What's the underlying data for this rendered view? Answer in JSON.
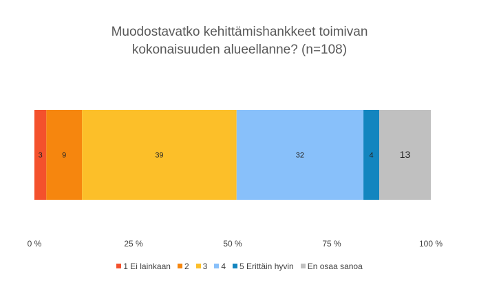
{
  "chart_data": {
    "type": "bar",
    "orientation": "horizontal",
    "stacked": "percent",
    "title": {
      "line1": "Muodostavatko kehittämishankkeet toimivan",
      "line2": "kokonaisuuden alueellanne? (n=108)"
    },
    "categories": [
      ""
    ],
    "series": [
      {
        "name": "1 Ei lainkaan",
        "values": [
          3
        ],
        "label": "3",
        "color": "#f4512c"
      },
      {
        "name": "2",
        "values": [
          9
        ],
        "label": "9",
        "color": "#f6860e"
      },
      {
        "name": "3",
        "values": [
          39
        ],
        "label": "39",
        "color": "#fcbf29"
      },
      {
        "name": "4",
        "values": [
          32
        ],
        "label": "32",
        "color": "#88c0fa"
      },
      {
        "name": "5 Erittäin hyvin",
        "values": [
          4
        ],
        "label": "4",
        "color": "#1385bf"
      },
      {
        "name": "En osaa sanoa",
        "values": [
          13
        ],
        "label": "13",
        "color": "#c0c0c0"
      }
    ],
    "xlim": [
      0,
      100
    ],
    "x_ticks": [
      "0 %",
      "25 %",
      "50 %",
      "75 %",
      "100 %"
    ],
    "grid": false,
    "legend": "bottom"
  }
}
